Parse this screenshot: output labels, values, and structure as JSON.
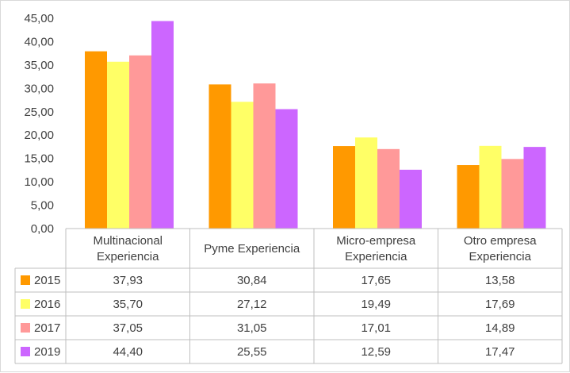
{
  "chart_data": {
    "type": "bar",
    "title": "",
    "xlabel": "",
    "ylabel": "",
    "ylim": [
      0,
      45
    ],
    "y_ticks": [
      "0,00",
      "5,00",
      "10,00",
      "15,00",
      "20,00",
      "25,00",
      "30,00",
      "35,00",
      "40,00",
      "45,00"
    ],
    "y_tick_values": [
      0,
      5,
      10,
      15,
      20,
      25,
      30,
      35,
      40,
      45
    ],
    "grid": false,
    "legend": "data-table",
    "categories": [
      [
        "Multinacional",
        "Experiencia"
      ],
      [
        "Pyme Experiencia"
      ],
      [
        "Micro-empresa",
        "Experiencia"
      ],
      [
        "Otro empresa",
        "Experiencia"
      ]
    ],
    "series": [
      {
        "name": "2015",
        "color": "#ff9900",
        "values": [
          37.93,
          30.84,
          17.65,
          13.58
        ],
        "labels": [
          "37,93",
          "30,84",
          "17,65",
          "13,58"
        ]
      },
      {
        "name": "2016",
        "color": "#ffff66",
        "values": [
          35.7,
          27.12,
          19.49,
          17.69
        ],
        "labels": [
          "35,70",
          "27,12",
          "19,49",
          "17,69"
        ]
      },
      {
        "name": "2017",
        "color": "#ff9999",
        "values": [
          37.05,
          31.05,
          17.01,
          14.89
        ],
        "labels": [
          "37,05",
          "31,05",
          "17,01",
          "14,89"
        ]
      },
      {
        "name": "2019",
        "color": "#cc66ff",
        "values": [
          44.4,
          25.55,
          12.59,
          17.47
        ],
        "labels": [
          "44,40",
          "25,55",
          "12,59",
          "17,47"
        ]
      }
    ]
  }
}
